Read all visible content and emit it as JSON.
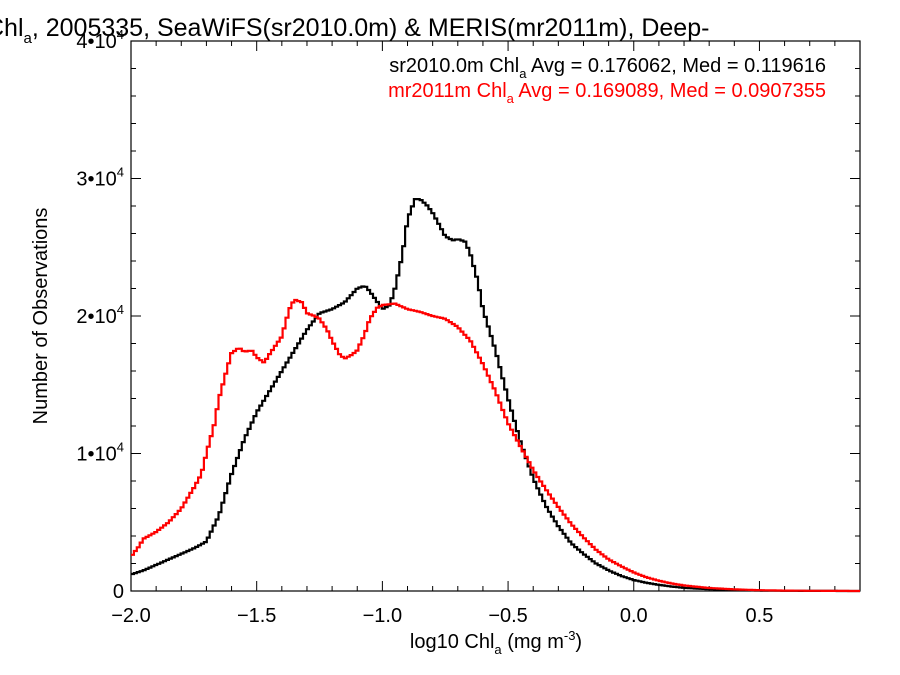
{
  "chart_data": {
    "type": "line",
    "title": {
      "prefix": "Chl",
      "sub": "a",
      "rest": ", 2005335, SeaWiFS(sr2010.0m) & MERIS(mr2011m), Deep-"
    },
    "xlabel": {
      "prefix": "log10 Chl",
      "sub": "a",
      "mid": " (mg m",
      "sup": "-3",
      "end": ")"
    },
    "ylabel": "Number of Observations",
    "xlim": [
      -2.0,
      0.9
    ],
    "ylim": [
      0,
      40000
    ],
    "x_ticks": [
      {
        "value": -2.0,
        "label": "−2.0"
      },
      {
        "value": -1.5,
        "label": "−1.5"
      },
      {
        "value": -1.0,
        "label": "−1.0"
      },
      {
        "value": -0.5,
        "label": "−0.5"
      },
      {
        "value": 0.0,
        "label": "0.0"
      },
      {
        "value": 0.5,
        "label": "0.5"
      }
    ],
    "y_ticks": [
      {
        "value": 0,
        "label": "0",
        "exp": ""
      },
      {
        "value": 10000,
        "label": "1•10",
        "exp": "4"
      },
      {
        "value": 20000,
        "label": "2•10",
        "exp": "4"
      },
      {
        "value": 30000,
        "label": "3•10",
        "exp": "4"
      },
      {
        "value": 40000,
        "label": "4•10",
        "exp": "4"
      }
    ],
    "legend": [
      {
        "pre": "sr2010.0m Chl",
        "sub": "a",
        "post": " Avg = 0.176062, Med = 0.119616",
        "color": "#000000"
      },
      {
        "pre": "mr2011m Chl",
        "sub": "a",
        "post": " Avg = 0.169089, Med = 0.0907355",
        "color": "#ff0000"
      }
    ],
    "legend_position": "top-right",
    "grid": false,
    "step": "histogram",
    "series": [
      {
        "color": "#000000",
        "x": [
          -2.0,
          -1.95,
          -1.9,
          -1.85,
          -1.8,
          -1.75,
          -1.7,
          -1.65,
          -1.6,
          -1.55,
          -1.5,
          -1.45,
          -1.4,
          -1.35,
          -1.3,
          -1.25,
          -1.2,
          -1.15,
          -1.1,
          -1.07,
          -1.05,
          -1.0,
          -0.97,
          -0.95,
          -0.92,
          -0.9,
          -0.87,
          -0.85,
          -0.82,
          -0.8,
          -0.77,
          -0.75,
          -0.72,
          -0.7,
          -0.67,
          -0.65,
          -0.62,
          -0.6,
          -0.55,
          -0.5,
          -0.45,
          -0.4,
          -0.35,
          -0.3,
          -0.25,
          -0.2,
          -0.15,
          -0.1,
          -0.05,
          0.0,
          0.05,
          0.1,
          0.15,
          0.2,
          0.3,
          0.4,
          0.5,
          0.6,
          0.7,
          0.9
        ],
        "y": [
          1200,
          1500,
          1900,
          2300,
          2700,
          3100,
          3600,
          5500,
          8500,
          11000,
          13000,
          14500,
          16000,
          17500,
          19000,
          20200,
          20500,
          21000,
          22000,
          22200,
          21800,
          20500,
          20800,
          22000,
          24500,
          27000,
          28500,
          28500,
          28000,
          27500,
          26500,
          25800,
          25500,
          25600,
          25400,
          24500,
          22500,
          20500,
          17500,
          14000,
          10800,
          8200,
          6200,
          4700,
          3500,
          2700,
          2000,
          1500,
          1100,
          800,
          600,
          450,
          320,
          230,
          130,
          70,
          35,
          15,
          8,
          0
        ]
      },
      {
        "color": "#ff0000",
        "x": [
          -2.0,
          -1.97,
          -1.95,
          -1.9,
          -1.85,
          -1.8,
          -1.75,
          -1.72,
          -1.7,
          -1.67,
          -1.65,
          -1.62,
          -1.6,
          -1.57,
          -1.55,
          -1.52,
          -1.5,
          -1.47,
          -1.45,
          -1.4,
          -1.37,
          -1.35,
          -1.32,
          -1.3,
          -1.27,
          -1.25,
          -1.22,
          -1.2,
          -1.17,
          -1.15,
          -1.12,
          -1.1,
          -1.07,
          -1.05,
          -1.02,
          -1.0,
          -0.95,
          -0.9,
          -0.85,
          -0.8,
          -0.75,
          -0.7,
          -0.65,
          -0.6,
          -0.55,
          -0.5,
          -0.45,
          -0.4,
          -0.35,
          -0.3,
          -0.25,
          -0.2,
          -0.15,
          -0.1,
          -0.05,
          0.0,
          0.05,
          0.1,
          0.15,
          0.2,
          0.3,
          0.4,
          0.5,
          0.6,
          0.7,
          0.9
        ],
        "y": [
          2500,
          3200,
          3800,
          4300,
          5000,
          6000,
          7500,
          8500,
          10000,
          12000,
          14000,
          16000,
          17300,
          17700,
          17400,
          17500,
          17000,
          16600,
          17200,
          18500,
          20500,
          21200,
          21000,
          20200,
          20000,
          19800,
          19000,
          18200,
          17200,
          16900,
          17200,
          17500,
          18700,
          19800,
          20600,
          20800,
          20900,
          20500,
          20300,
          20000,
          19800,
          19200,
          18200,
          16500,
          14500,
          12200,
          10500,
          8800,
          7400,
          6100,
          4900,
          3900,
          3000,
          2300,
          1800,
          1350,
          1000,
          750,
          550,
          400,
          220,
          120,
          60,
          30,
          15,
          0
        ]
      }
    ]
  }
}
